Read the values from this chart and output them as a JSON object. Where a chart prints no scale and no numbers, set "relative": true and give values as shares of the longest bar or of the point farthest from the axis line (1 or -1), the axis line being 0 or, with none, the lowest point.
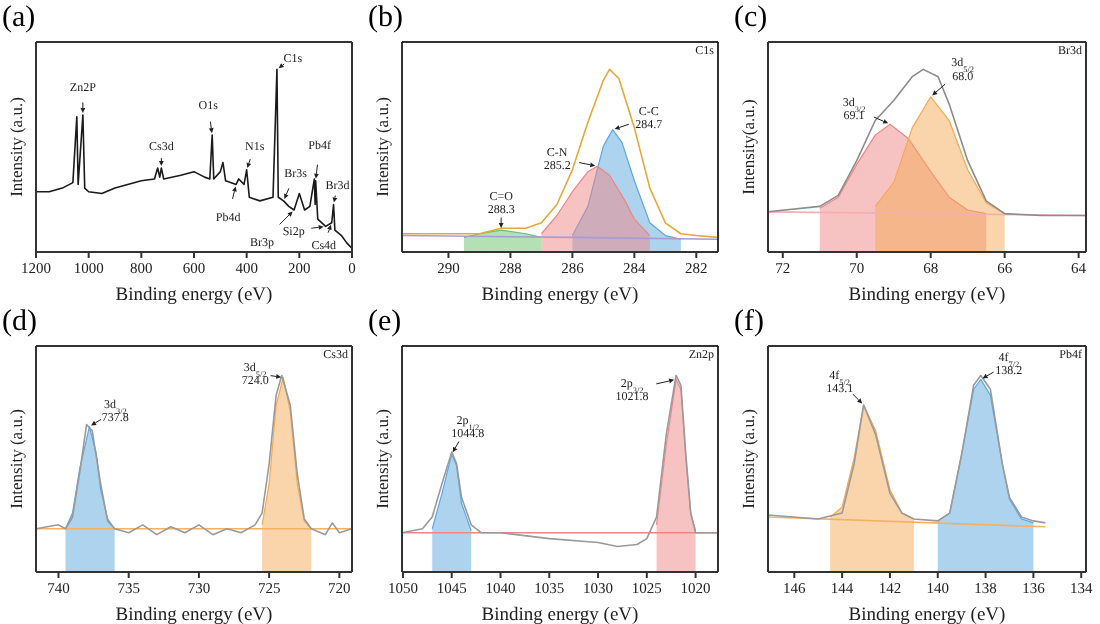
{
  "chart_data": [
    {
      "type": "line",
      "title": "(a)",
      "xlabel": "Binding energy (eV)",
      "ylabel": "Intensity (a.u.)",
      "relative": true,
      "xlim": [
        1200,
        0
      ],
      "xticks": [
        1200,
        1000,
        800,
        600,
        400,
        200,
        0
      ],
      "tick_labels": "x",
      "series": [
        {
          "type": "line",
          "color": "#1a1a1a",
          "x": [
            1200,
            1150,
            1100,
            1060,
            1045,
            1040,
            1022,
            1015,
            1000,
            950,
            900,
            800,
            750,
            738,
            730,
            724,
            715,
            650,
            600,
            560,
            540,
            531,
            525,
            500,
            490,
            480,
            440,
            430,
            410,
            400,
            390,
            350,
            300,
            285,
            280,
            260,
            240,
            220,
            200,
            180,
            160,
            143,
            140,
            138,
            130,
            100,
            77,
            70,
            65,
            40,
            20,
            0
          ],
          "values": [
            0.33,
            0.33,
            0.35,
            0.38,
            0.74,
            0.37,
            0.75,
            0.35,
            0.33,
            0.32,
            0.35,
            0.39,
            0.4,
            0.46,
            0.41,
            0.46,
            0.4,
            0.42,
            0.44,
            0.41,
            0.4,
            0.64,
            0.4,
            0.44,
            0.49,
            0.39,
            0.37,
            0.4,
            0.37,
            0.45,
            0.3,
            0.28,
            0.3,
            1.0,
            0.3,
            0.28,
            0.25,
            0.23,
            0.32,
            0.23,
            0.25,
            0.4,
            0.26,
            0.39,
            0.18,
            0.14,
            0.16,
            0.26,
            0.12,
            0.09,
            0.05,
            0.02
          ]
        }
      ],
      "annotations": [
        {
          "text": "Zn2P",
          "x": 1022,
          "y": 0.75
        },
        {
          "text": "Cs3d",
          "x": 724,
          "y": 0.46
        },
        {
          "text": "O1s",
          "x": 531,
          "y": 0.64
        },
        {
          "text": "N1s",
          "x": 400,
          "y": 0.45
        },
        {
          "text": "C1s",
          "x": 285,
          "y": 1.0
        },
        {
          "text": "Pb4d",
          "x": 440,
          "y": 0.37
        },
        {
          "text": "Br3s",
          "x": 260,
          "y": 0.28
        },
        {
          "text": "Br3p",
          "x": 220,
          "y": 0.23
        },
        {
          "text": "Si2p",
          "x": 100,
          "y": 0.14
        },
        {
          "text": "Pb4f",
          "x": 138,
          "y": 0.39
        },
        {
          "text": "Br3d",
          "x": 70,
          "y": 0.26
        },
        {
          "text": "Cs4d",
          "x": 77,
          "y": 0.16
        }
      ]
    },
    {
      "type": "line",
      "title": "(b)",
      "xlabel": "Binding energy (eV)",
      "ylabel": "Intensity (a.u.)",
      "relative": true,
      "xlim": [
        291.5,
        281.3
      ],
      "xticks": [
        290,
        288,
        286,
        284,
        282
      ],
      "tick_labels": "x",
      "series": [
        {
          "type": "line",
          "color": "#a99bd3",
          "x": [
            291.5,
            286,
            281.3
          ],
          "values": [
            0.09,
            0.08,
            0.07
          ]
        },
        {
          "type": "area",
          "color": "#5ca8e0",
          "x": [
            286,
            285.5,
            285.2,
            285,
            284.7,
            284.4,
            284,
            283.5,
            283,
            282.5
          ],
          "values": [
            0.09,
            0.25,
            0.45,
            0.58,
            0.67,
            0.6,
            0.39,
            0.16,
            0.09,
            0.07
          ]
        },
        {
          "type": "area",
          "color": "#f08585",
          "x": [
            287,
            286.5,
            286,
            285.5,
            285.2,
            284.8,
            284.3,
            284,
            283.5
          ],
          "values": [
            0.1,
            0.2,
            0.33,
            0.44,
            0.47,
            0.42,
            0.28,
            0.18,
            0.09
          ]
        },
        {
          "type": "area",
          "color": "#6cbf6c",
          "x": [
            289.5,
            289,
            288.3,
            287.5,
            287
          ],
          "values": [
            0.08,
            0.1,
            0.12,
            0.1,
            0.08
          ]
        },
        {
          "type": "line",
          "color": "#e3a93a",
          "x": [
            291.5,
            290,
            289,
            288.3,
            287.5,
            287,
            286.5,
            286,
            285.5,
            285,
            284.8,
            284.5,
            284,
            283.5,
            283,
            282.5,
            282,
            281.3
          ],
          "values": [
            0.1,
            0.1,
            0.1,
            0.13,
            0.13,
            0.16,
            0.26,
            0.45,
            0.71,
            0.94,
            1.0,
            0.95,
            0.68,
            0.35,
            0.16,
            0.1,
            0.09,
            0.08
          ]
        }
      ],
      "annotations": [
        "C1s",
        {
          "text": "C-C\n284.7",
          "x": 284.7,
          "y": 0.67
        },
        {
          "text": "C-N\n285.2",
          "x": 285.2,
          "y": 0.47
        },
        {
          "text": "C=O\n288.3",
          "x": 288.3,
          "y": 0.12
        }
      ]
    },
    {
      "type": "line",
      "title": "(c)",
      "xlabel": "Binding energy (eV)",
      "ylabel": "Intensity(a.u.)",
      "relative": true,
      "xlim": [
        72.4,
        63.8
      ],
      "xticks": [
        72,
        70,
        68,
        66,
        64
      ],
      "tick_labels": "x",
      "series": [
        {
          "type": "line",
          "color": "#f2b0b0",
          "x": [
            72.4,
            68,
            63.8
          ],
          "values": [
            0.22,
            0.21,
            0.2
          ]
        },
        {
          "type": "area",
          "color": "#f08585",
          "x": [
            71,
            70.5,
            70,
            69.5,
            69.1,
            68.6,
            68,
            67.5,
            67,
            66.5
          ],
          "values": [
            0.24,
            0.3,
            0.48,
            0.64,
            0.7,
            0.62,
            0.44,
            0.3,
            0.23,
            0.21
          ]
        },
        {
          "type": "area",
          "color": "#f5a955",
          "x": [
            69.5,
            69,
            68.5,
            68,
            67.5,
            67,
            66.5,
            66
          ],
          "values": [
            0.25,
            0.38,
            0.68,
            0.85,
            0.72,
            0.45,
            0.27,
            0.21
          ]
        },
        {
          "type": "line",
          "color": "#8c8c8c",
          "x": [
            72.4,
            71,
            70.5,
            70,
            69.5,
            69,
            68.5,
            68.2,
            67.8,
            67.5,
            67,
            66.5,
            66,
            65,
            64,
            63.8
          ],
          "values": [
            0.22,
            0.25,
            0.31,
            0.5,
            0.72,
            0.83,
            0.96,
            1.0,
            0.96,
            0.81,
            0.5,
            0.28,
            0.21,
            0.2,
            0.2,
            0.2
          ]
        }
      ],
      "annotations": [
        "Br3d",
        {
          "text": "3d$_{3/2}$\n69.1",
          "x": 69.1,
          "y": 0.7
        },
        {
          "text": "3d$_{5/2}$\n68.0",
          "x": 68.0,
          "y": 0.85
        }
      ]
    },
    {
      "type": "line",
      "title": "(d)",
      "xlabel": "Binding energy (eV)",
      "ylabel": "Intensity (a.u.)",
      "relative": true,
      "xlim": [
        741.6,
        719.1
      ],
      "xticks": [
        740,
        735,
        730,
        725,
        720
      ],
      "tick_labels": "x",
      "series": [
        {
          "type": "line",
          "color": "#f5b060",
          "x": [
            741.6,
            719.1
          ],
          "values": [
            0.22,
            0.22
          ]
        },
        {
          "type": "area",
          "color": "#5ca8e0",
          "x": [
            739.5,
            739,
            738.5,
            737.8,
            737.3,
            737,
            736.5,
            736
          ],
          "values": [
            0.22,
            0.3,
            0.52,
            0.74,
            0.6,
            0.42,
            0.27,
            0.22
          ]
        },
        {
          "type": "area",
          "color": "#f5a955",
          "x": [
            725.5,
            725,
            724.5,
            724,
            723.5,
            723,
            722.5,
            722
          ],
          "values": [
            0.24,
            0.45,
            0.85,
            0.99,
            0.82,
            0.45,
            0.26,
            0.22
          ]
        },
        {
          "type": "line",
          "color": "#9a9a9a",
          "x": [
            741.6,
            740,
            739.5,
            739,
            738.5,
            738,
            737.6,
            737,
            736.5,
            736,
            735,
            734,
            733,
            732,
            731,
            730,
            729,
            728,
            727,
            726,
            725.5,
            725,
            724.5,
            724.1,
            723.5,
            723,
            722.5,
            722,
            721,
            720.5,
            720,
            719.1
          ],
          "values": [
            0.22,
            0.24,
            0.22,
            0.28,
            0.5,
            0.75,
            0.72,
            0.45,
            0.26,
            0.22,
            0.2,
            0.24,
            0.19,
            0.23,
            0.2,
            0.24,
            0.19,
            0.22,
            0.2,
            0.24,
            0.3,
            0.55,
            0.9,
            1.0,
            0.85,
            0.5,
            0.27,
            0.22,
            0.19,
            0.25,
            0.2,
            0.22
          ]
        }
      ],
      "annotations": [
        "Cs3d",
        {
          "text": "3d$_{3/2}$\n737.8",
          "x": 737.8,
          "y": 0.74
        },
        {
          "text": "3d$_{5/2}$\n724.0",
          "x": 724,
          "y": 0.99
        }
      ]
    },
    {
      "type": "line",
      "title": "(e)",
      "xlabel": "Binding energy (eV)",
      "ylabel": "Intensity (a.u.)",
      "relative": true,
      "xlim": [
        1050.1,
        1017.7
      ],
      "xticks": [
        1050,
        1045,
        1040,
        1035,
        1030,
        1025,
        1020
      ],
      "tick_labels": "x",
      "series": [
        {
          "type": "line",
          "color": "#f08585",
          "x": [
            1050.1,
            1017.7
          ],
          "values": [
            0.2,
            0.2
          ]
        },
        {
          "type": "area",
          "color": "#5ca8e0",
          "x": [
            1047,
            1046,
            1045,
            1044.5,
            1044,
            1043
          ],
          "values": [
            0.22,
            0.4,
            0.6,
            0.54,
            0.35,
            0.21
          ]
        },
        {
          "type": "area",
          "color": "#f08585",
          "x": [
            1024,
            1023,
            1022,
            1021.5,
            1021,
            1020.5,
            1020
          ],
          "values": [
            0.24,
            0.65,
            0.98,
            0.93,
            0.58,
            0.3,
            0.21
          ]
        },
        {
          "type": "line",
          "color": "#9a9a9a",
          "x": [
            1050.1,
            1048,
            1047,
            1046,
            1045,
            1044.5,
            1044,
            1043,
            1042,
            1040,
            1035,
            1030,
            1028,
            1026,
            1025,
            1024,
            1023,
            1022,
            1021.5,
            1021,
            1020.5,
            1020,
            1018,
            1017.7
          ],
          "values": [
            0.2,
            0.22,
            0.28,
            0.45,
            0.61,
            0.55,
            0.38,
            0.24,
            0.2,
            0.2,
            0.17,
            0.15,
            0.13,
            0.14,
            0.17,
            0.28,
            0.7,
            1.0,
            0.95,
            0.6,
            0.3,
            0.2,
            0.2,
            0.2
          ]
        }
      ],
      "annotations": [
        "Zn2p",
        {
          "text": "2p$_{1/2}$\n1044.8",
          "x": 1045,
          "y": 0.6
        },
        {
          "text": "2p$_{3/2}$\n1021.8",
          "x": 1022,
          "y": 0.98
        }
      ]
    },
    {
      "type": "line",
      "title": "(f)",
      "xlabel": "Binding energy (eV)",
      "ylabel": "Intensity (a.u.)",
      "relative": true,
      "xlim": [
        147.1,
        133.8
      ],
      "xticks": [
        146,
        144,
        142,
        140,
        138,
        136,
        134
      ],
      "tick_labels": "x",
      "series": [
        {
          "type": "line",
          "color": "#f5b060",
          "x": [
            147.1,
            135.5
          ],
          "values": [
            0.28,
            0.23
          ]
        },
        {
          "type": "area",
          "color": "#f5a955",
          "x": [
            144.5,
            144,
            143.5,
            143.1,
            142.6,
            142,
            141.5,
            141
          ],
          "values": [
            0.28,
            0.33,
            0.58,
            0.85,
            0.72,
            0.42,
            0.3,
            0.27
          ]
        },
        {
          "type": "area",
          "color": "#5ca8e0",
          "x": [
            140,
            139.5,
            139,
            138.5,
            138.2,
            137.8,
            137.3,
            137,
            136.5,
            136
          ],
          "values": [
            0.26,
            0.3,
            0.6,
            0.93,
            0.98,
            0.9,
            0.55,
            0.37,
            0.27,
            0.25
          ]
        },
        {
          "type": "line",
          "color": "#9a9a9a",
          "x": [
            147.1,
            145,
            144,
            143.5,
            143.1,
            142.6,
            142,
            141.5,
            141,
            140,
            139.5,
            139,
            138.5,
            138.2,
            137.8,
            137.3,
            137,
            136.5,
            136,
            135.5
          ],
          "values": [
            0.29,
            0.27,
            0.3,
            0.55,
            0.85,
            0.7,
            0.4,
            0.3,
            0.27,
            0.26,
            0.3,
            0.6,
            0.95,
            1.0,
            0.93,
            0.55,
            0.38,
            0.28,
            0.26,
            0.25
          ]
        }
      ],
      "annotations": [
        "Pb4f",
        {
          "text": "4f$_{5/2}$\n143.1",
          "x": 143.1,
          "y": 0.85
        },
        {
          "text": "4f$_{7/2}$\n138.2",
          "x": 138.2,
          "y": 0.98
        }
      ]
    }
  ]
}
